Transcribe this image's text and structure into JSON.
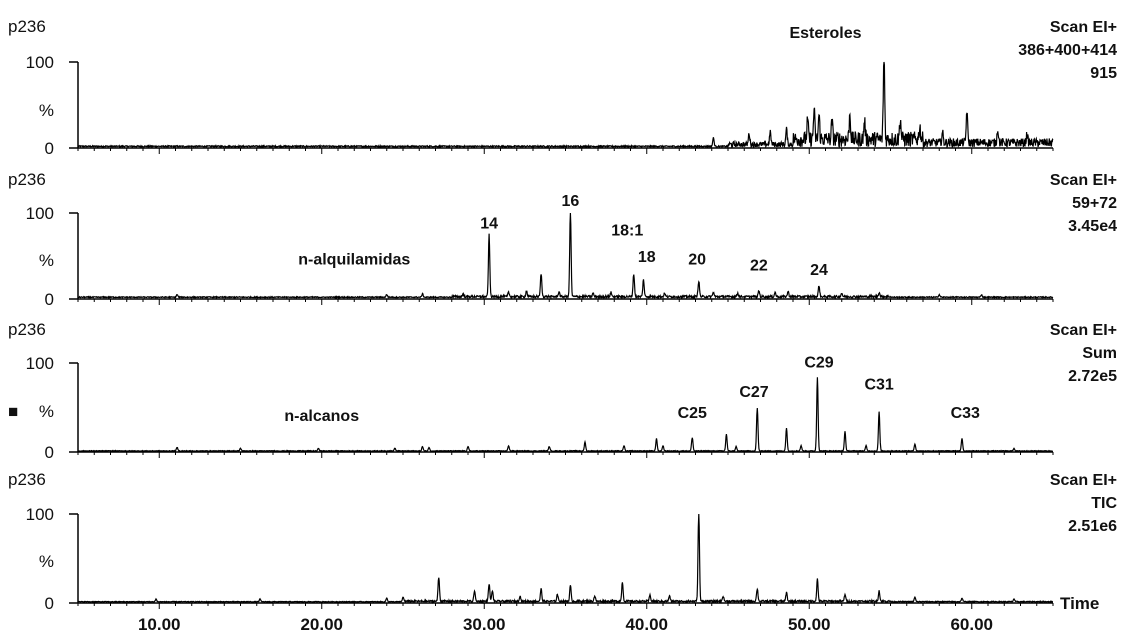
{
  "chart_data": {
    "type": "line",
    "xlabel": "Time",
    "xlim": [
      5,
      65
    ],
    "x_ticks": [
      "10.00",
      "20.00",
      "30.00",
      "40.00",
      "50.00",
      "60.00"
    ],
    "y_ticks": [
      "0",
      "%",
      "100"
    ],
    "side_marker": "■",
    "panels": [
      {
        "sample": "p236",
        "scan_lines": [
          "Scan EI+",
          "386+400+414",
          "915"
        ],
        "ylim": [
          0,
          100
        ],
        "annotations": [
          {
            "label": "Esteroles",
            "x": 51.0,
            "y": 128
          }
        ],
        "series": {
          "baseline": 1.2,
          "noise": [
            {
              "from": 5,
              "to": 45,
              "amp": 1.5
            },
            {
              "from": 45,
              "to": 49,
              "amp": 6
            },
            {
              "from": 49,
              "to": 57,
              "amp": 18
            },
            {
              "from": 57,
              "to": 65,
              "amp": 10
            }
          ],
          "peaks": [
            {
              "x": 44.1,
              "y": 10
            },
            {
              "x": 46.3,
              "y": 13
            },
            {
              "x": 47.6,
              "y": 14
            },
            {
              "x": 48.6,
              "y": 18
            },
            {
              "x": 49.9,
              "y": 22
            },
            {
              "x": 50.3,
              "y": 34
            },
            {
              "x": 50.6,
              "y": 28
            },
            {
              "x": 51.4,
              "y": 20
            },
            {
              "x": 52.5,
              "y": 30
            },
            {
              "x": 53.4,
              "y": 22
            },
            {
              "x": 54.6,
              "y": 100
            },
            {
              "x": 55.6,
              "y": 24
            },
            {
              "x": 56.8,
              "y": 15
            },
            {
              "x": 58.2,
              "y": 12
            },
            {
              "x": 59.7,
              "y": 38
            },
            {
              "x": 61.6,
              "y": 16
            },
            {
              "x": 63.4,
              "y": 10
            }
          ]
        }
      },
      {
        "sample": "p236",
        "scan_lines": [
          "Scan EI+",
          "59+72",
          "3.45e4"
        ],
        "ylim": [
          0,
          100
        ],
        "annotations": [
          {
            "label": "n-alquilamidas",
            "x": 22.0,
            "y": 40
          },
          {
            "label": "14",
            "x": 30.3,
            "y": 82
          },
          {
            "label": "16",
            "x": 35.3,
            "y": 108
          },
          {
            "label": "18:1",
            "x": 38.8,
            "y": 74
          },
          {
            "label": "18",
            "x": 40.0,
            "y": 43
          },
          {
            "label": "20",
            "x": 43.1,
            "y": 40
          },
          {
            "label": "22",
            "x": 46.9,
            "y": 33
          },
          {
            "label": "24",
            "x": 50.6,
            "y": 28
          }
        ],
        "series": {
          "baseline": 1.5,
          "noise": [
            {
              "from": 5,
              "to": 28,
              "amp": 1.2
            },
            {
              "from": 28,
              "to": 55,
              "amp": 2.5
            },
            {
              "from": 55,
              "to": 65,
              "amp": 1.2
            }
          ],
          "peaks": [
            {
              "x": 11.1,
              "y": 3
            },
            {
              "x": 24.0,
              "y": 3
            },
            {
              "x": 26.2,
              "y": 4
            },
            {
              "x": 28.7,
              "y": 3
            },
            {
              "x": 30.3,
              "y": 72
            },
            {
              "x": 31.5,
              "y": 5
            },
            {
              "x": 32.6,
              "y": 7
            },
            {
              "x": 33.5,
              "y": 27
            },
            {
              "x": 34.6,
              "y": 6
            },
            {
              "x": 35.3,
              "y": 100
            },
            {
              "x": 36.7,
              "y": 4
            },
            {
              "x": 37.8,
              "y": 5
            },
            {
              "x": 39.2,
              "y": 26
            },
            {
              "x": 39.8,
              "y": 20
            },
            {
              "x": 41.1,
              "y": 4
            },
            {
              "x": 43.2,
              "y": 18
            },
            {
              "x": 44.1,
              "y": 5
            },
            {
              "x": 45.6,
              "y": 4
            },
            {
              "x": 46.9,
              "y": 7
            },
            {
              "x": 47.9,
              "y": 5
            },
            {
              "x": 48.7,
              "y": 6
            },
            {
              "x": 50.6,
              "y": 13
            },
            {
              "x": 52.0,
              "y": 4
            },
            {
              "x": 54.3,
              "y": 5
            },
            {
              "x": 58.0,
              "y": 3
            },
            {
              "x": 60.6,
              "y": 3
            }
          ]
        }
      },
      {
        "sample": "p236",
        "scan_lines": [
          "Scan EI+",
          "Sum",
          "2.72e5"
        ],
        "ylim": [
          0,
          100
        ],
        "annotations": [
          {
            "label": "n-alcanos",
            "x": 20.0,
            "y": 35
          },
          {
            "label": "C25",
            "x": 42.8,
            "y": 38
          },
          {
            "label": "C27",
            "x": 46.6,
            "y": 62
          },
          {
            "label": "C29",
            "x": 50.6,
            "y": 95
          },
          {
            "label": "C31",
            "x": 54.3,
            "y": 70
          },
          {
            "label": "C33",
            "x": 59.6,
            "y": 38
          }
        ],
        "series": {
          "baseline": 0.8,
          "noise": [
            {
              "from": 5,
              "to": 65,
              "amp": 0.8
            }
          ],
          "peaks": [
            {
              "x": 11.1,
              "y": 4
            },
            {
              "x": 15.0,
              "y": 3
            },
            {
              "x": 19.8,
              "y": 3
            },
            {
              "x": 24.5,
              "y": 3
            },
            {
              "x": 26.2,
              "y": 5
            },
            {
              "x": 26.6,
              "y": 4
            },
            {
              "x": 29.0,
              "y": 5
            },
            {
              "x": 31.5,
              "y": 6
            },
            {
              "x": 34.0,
              "y": 5
            },
            {
              "x": 36.2,
              "y": 10
            },
            {
              "x": 38.6,
              "y": 6
            },
            {
              "x": 40.6,
              "y": 14
            },
            {
              "x": 41.0,
              "y": 6
            },
            {
              "x": 42.8,
              "y": 15
            },
            {
              "x": 44.9,
              "y": 19
            },
            {
              "x": 45.5,
              "y": 5
            },
            {
              "x": 46.8,
              "y": 48
            },
            {
              "x": 48.6,
              "y": 26
            },
            {
              "x": 49.5,
              "y": 6
            },
            {
              "x": 50.5,
              "y": 83
            },
            {
              "x": 52.2,
              "y": 22
            },
            {
              "x": 53.5,
              "y": 6
            },
            {
              "x": 54.3,
              "y": 44
            },
            {
              "x": 56.5,
              "y": 8
            },
            {
              "x": 59.4,
              "y": 14
            },
            {
              "x": 62.6,
              "y": 3
            }
          ]
        }
      },
      {
        "sample": "p236",
        "scan_lines": [
          "Scan EI+",
          "TIC",
          "2.51e6"
        ],
        "ylim": [
          0,
          100
        ],
        "annotations": [],
        "series": {
          "baseline": 1.0,
          "noise": [
            {
              "from": 5,
              "to": 25,
              "amp": 0.8
            },
            {
              "from": 25,
              "to": 55,
              "amp": 2.0
            },
            {
              "from": 55,
              "to": 65,
              "amp": 1.0
            }
          ],
          "peaks": [
            {
              "x": 9.8,
              "y": 3
            },
            {
              "x": 16.2,
              "y": 3
            },
            {
              "x": 24.0,
              "y": 4
            },
            {
              "x": 25.0,
              "y": 5
            },
            {
              "x": 27.2,
              "y": 27
            },
            {
              "x": 29.4,
              "y": 12
            },
            {
              "x": 30.3,
              "y": 20
            },
            {
              "x": 30.5,
              "y": 12
            },
            {
              "x": 32.2,
              "y": 6
            },
            {
              "x": 33.5,
              "y": 14
            },
            {
              "x": 34.5,
              "y": 8
            },
            {
              "x": 35.3,
              "y": 18
            },
            {
              "x": 36.8,
              "y": 6
            },
            {
              "x": 38.5,
              "y": 22
            },
            {
              "x": 40.2,
              "y": 7
            },
            {
              "x": 41.4,
              "y": 6
            },
            {
              "x": 43.2,
              "y": 100
            },
            {
              "x": 44.7,
              "y": 6
            },
            {
              "x": 46.8,
              "y": 14
            },
            {
              "x": 48.6,
              "y": 10
            },
            {
              "x": 50.5,
              "y": 25
            },
            {
              "x": 52.2,
              "y": 8
            },
            {
              "x": 54.3,
              "y": 12
            },
            {
              "x": 56.5,
              "y": 5
            },
            {
              "x": 59.4,
              "y": 4
            },
            {
              "x": 62.6,
              "y": 3
            }
          ]
        }
      }
    ]
  }
}
